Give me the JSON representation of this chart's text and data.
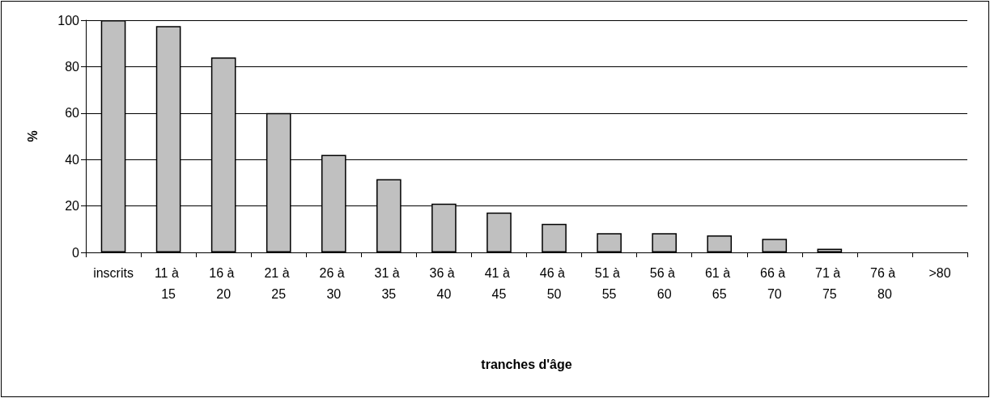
{
  "chart_data": {
    "type": "bar",
    "xlabel": "tranches d'âge",
    "ylabel": "%",
    "categories": [
      "inscrits",
      "11 à 15",
      "16 à 20",
      "21 à 25",
      "26 à 30",
      "31 à 35",
      "36 à 40",
      "41 à 45",
      "46 à 50",
      "51 à 55",
      "56 à 60",
      "61 à 65",
      "66 à 70",
      "71 à 75",
      "76 à 80",
      ">80"
    ],
    "values": [
      100,
      97.5,
      84,
      60,
      42,
      31.5,
      21,
      17.2,
      12.3,
      8.3,
      8.3,
      7.3,
      5.8,
      1.6,
      0,
      0
    ],
    "color": "#c0c0c0",
    "ylim": [
      0,
      100
    ],
    "yticks": [
      0,
      20,
      40,
      60,
      80,
      100
    ],
    "grid": "y"
  }
}
